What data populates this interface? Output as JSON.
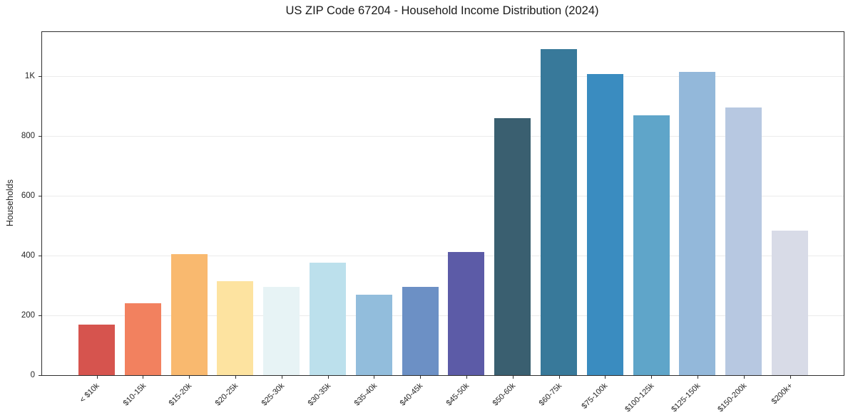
{
  "chart_data": {
    "type": "bar",
    "title": "US ZIP Code 67204 - Household Income Distribution (2024)",
    "xlabel": "",
    "ylabel": "Households",
    "categories": [
      "< $10k",
      "$10-15k",
      "$15-20k",
      "$20-25k",
      "$25-30k",
      "$30-35k",
      "$35-40k",
      "$40-45k",
      "$45-50k",
      "$50-60k",
      "$60-75k",
      "$75-100k",
      "$100-125k",
      "$125-150k",
      "$150-200k",
      "$200k+"
    ],
    "values": [
      168,
      240,
      405,
      315,
      296,
      376,
      270,
      295,
      411,
      858,
      1090,
      1006,
      868,
      1014,
      895,
      482
    ],
    "bar_colors": [
      "#d6544e",
      "#f2815f",
      "#f9b96f",
      "#fde3a0",
      "#e7f3f5",
      "#bce0ec",
      "#92bddc",
      "#6c90c5",
      "#5c5ba7",
      "#3a5f70",
      "#38799a",
      "#3a8cc0",
      "#5fa5c9",
      "#93b8da",
      "#b7c8e1",
      "#d8dbe7"
    ],
    "yticks": [
      {
        "value": 0,
        "label": "0"
      },
      {
        "value": 200,
        "label": "200"
      },
      {
        "value": 400,
        "label": "400"
      },
      {
        "value": 600,
        "label": "600"
      },
      {
        "value": 800,
        "label": "800"
      },
      {
        "value": 1000,
        "label": "1K"
      }
    ],
    "ylim": [
      0,
      1147
    ],
    "grid": "horizontal",
    "legend": "none",
    "axis_color": "#2e2e2e",
    "grid_color": "#ebebeb",
    "text_color": "#262626"
  }
}
